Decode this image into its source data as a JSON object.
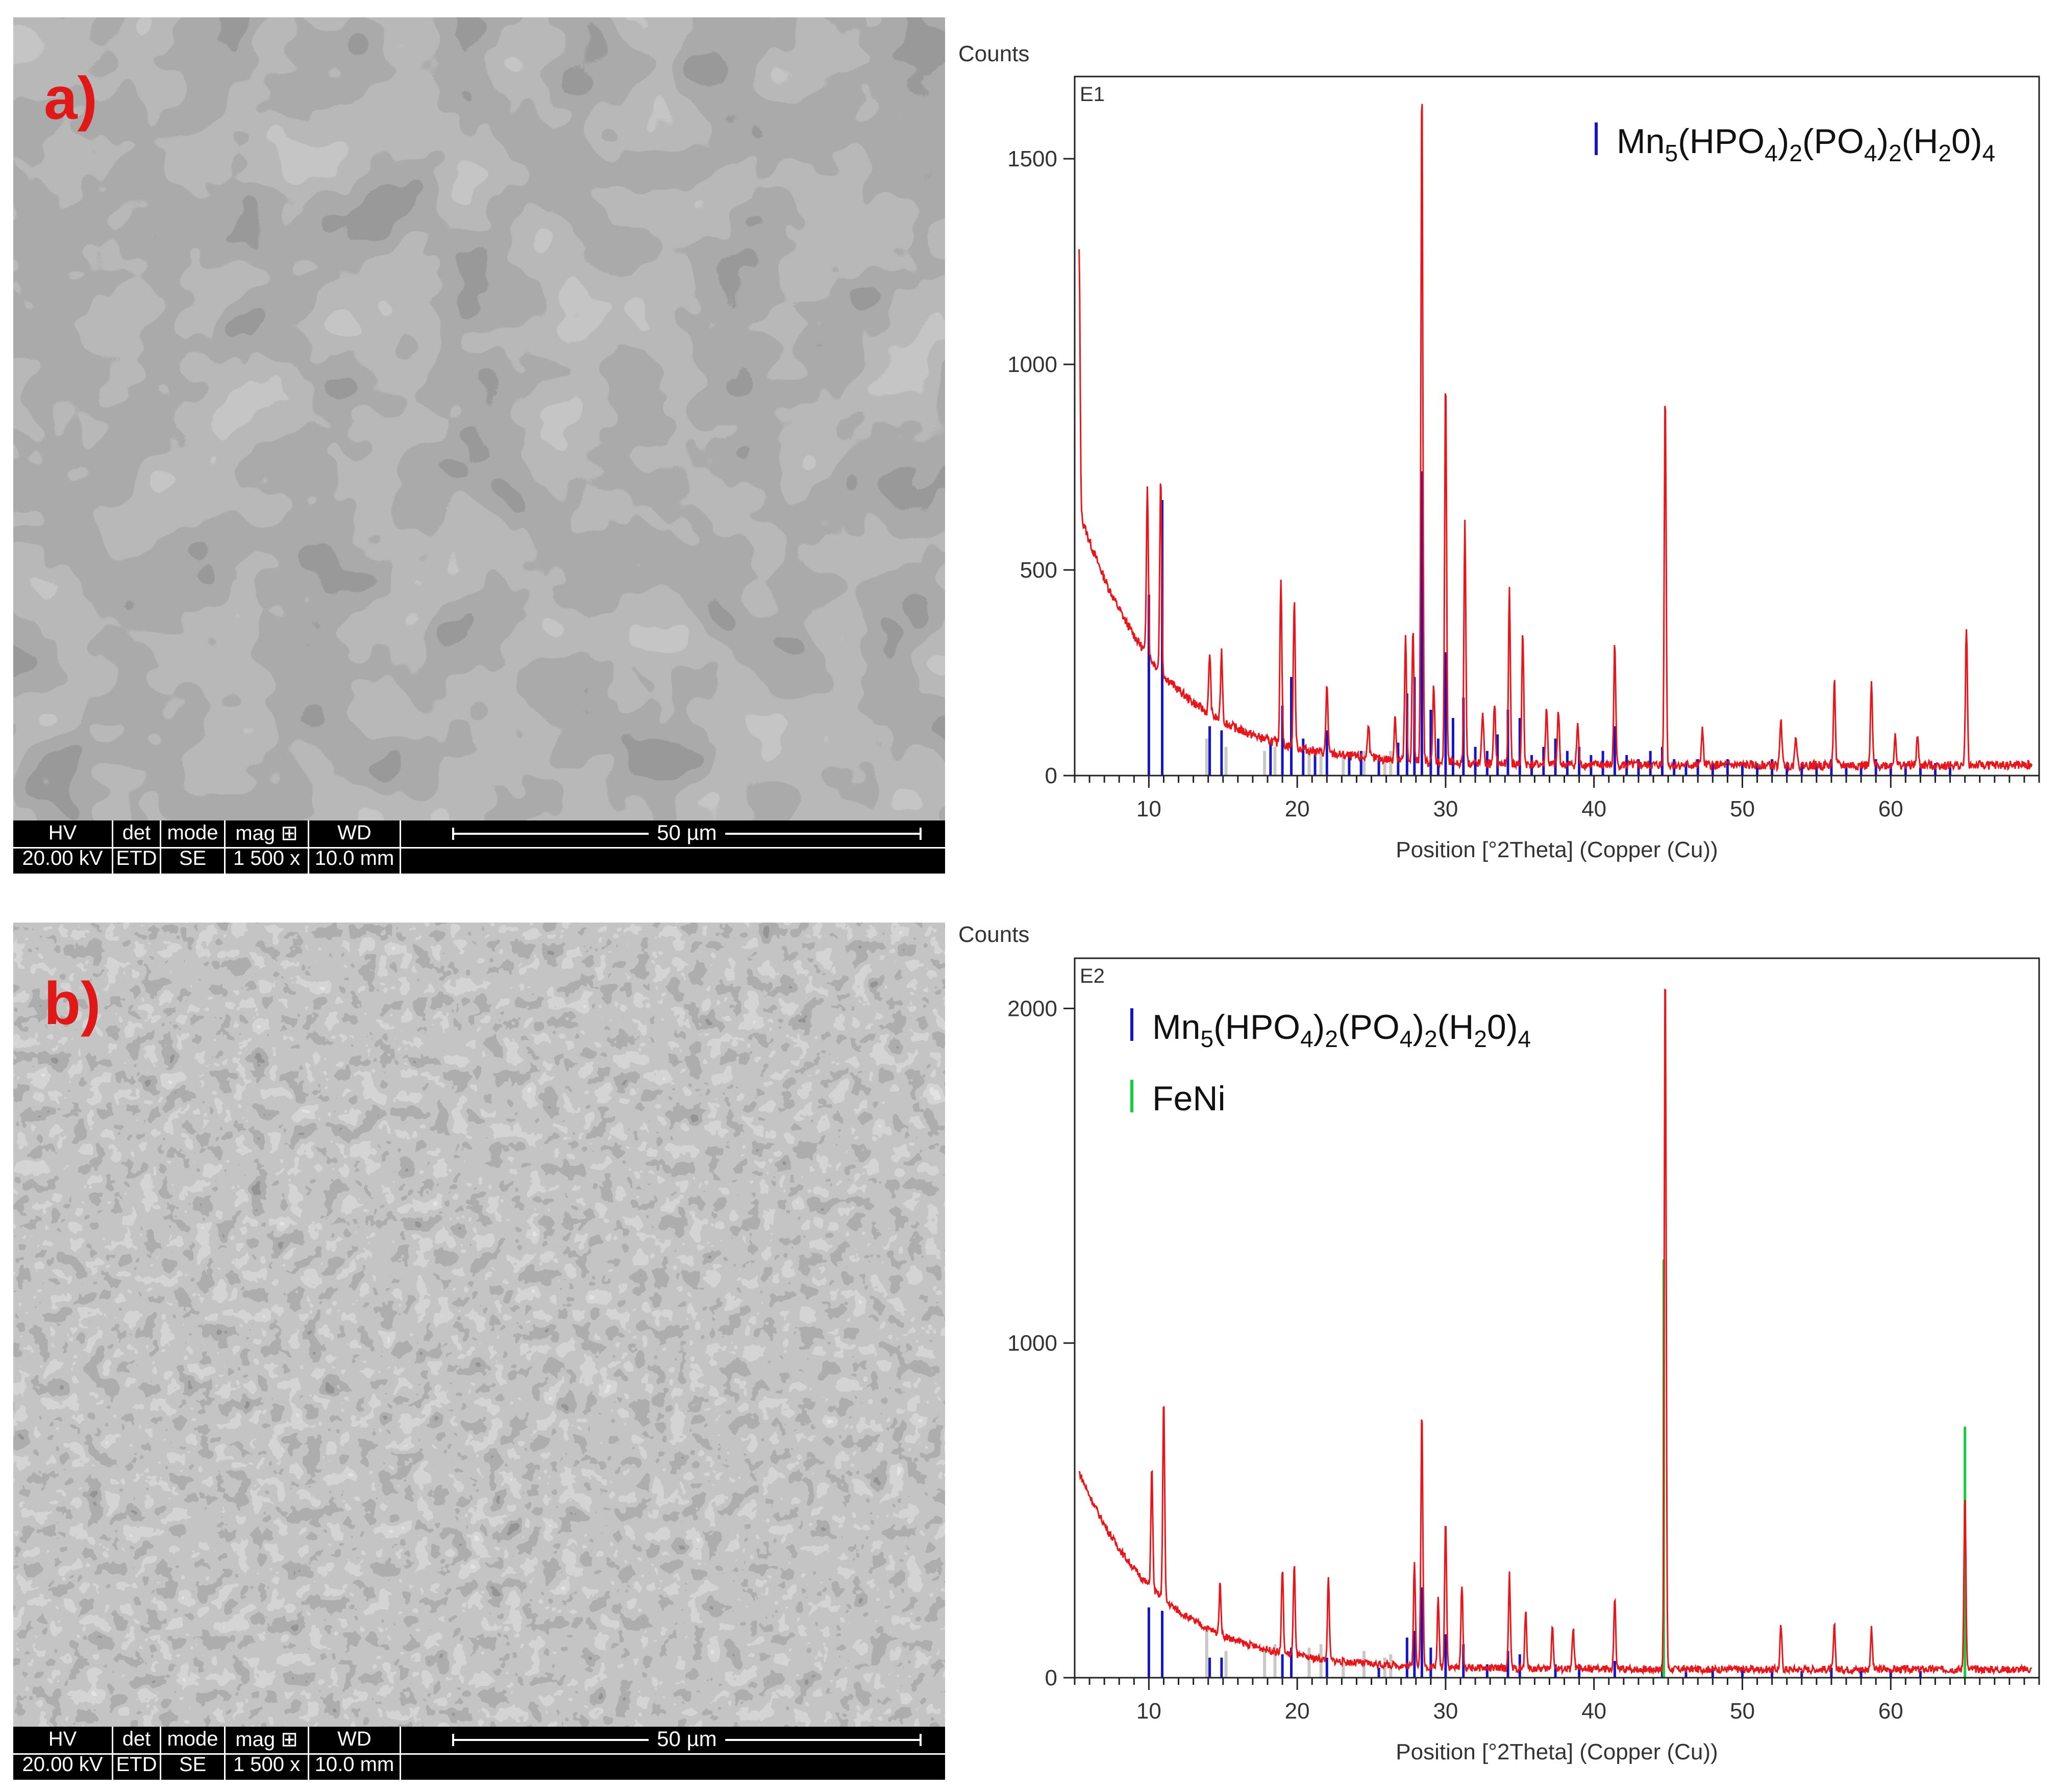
{
  "sem_panels": [
    {
      "label": "a)",
      "databar": {
        "hv_header": "HV",
        "hv_value": "20.00 kV",
        "det_header": "det",
        "det_value": "ETD",
        "mode_header": "mode",
        "mode_value": "SE",
        "mag_header": "mag ⊞",
        "mag_value": "1 500 x",
        "wd_header": "WD",
        "wd_value": "10.0 mm",
        "scale_label": "50 µm"
      }
    },
    {
      "label": "b)",
      "databar": {
        "hv_header": "HV",
        "hv_value": "20.00 kV",
        "det_header": "det",
        "det_value": "ETD",
        "mode_header": "mode",
        "mode_value": "SE",
        "mag_header": "mag ⊞",
        "mag_value": "1 500 x",
        "wd_header": "WD",
        "wd_value": "10.0 mm",
        "scale_label": "50 µm"
      }
    }
  ],
  "colors": {
    "pattern": "#e8151a",
    "phase_mn": "#1515c8",
    "phase_feni": "#10d040",
    "reference": "#c8c8c8"
  },
  "chart_data": [
    {
      "type": "line",
      "panel_id": "E1",
      "ylabel": "Counts",
      "xlabel": "Position [°2Theta] (Copper (Cu))",
      "xlim": [
        5,
        70
      ],
      "ylim": [
        0,
        1700
      ],
      "x_ticks": [
        10,
        20,
        30,
        40,
        50,
        60
      ],
      "y_ticks": [
        0,
        500,
        1000,
        1500
      ],
      "legend": [
        {
          "name": "Mn",
          "suffix": "(HPO",
          "s1": "4",
          "m1": ")",
          "s2": "2",
          "m2": "(PO",
          "s3": "4",
          "m3": ")",
          "s4": "2",
          "m4": "(H",
          "s5": "2",
          "m5": "0)",
          "s6": "4",
          "color": "#1515c8"
        }
      ],
      "series": [
        {
          "name": "measured",
          "background": {
            "start": 620,
            "decay": 5.5,
            "floor": 25
          },
          "peaks": [
            [
              5.3,
              630
            ],
            [
              9.9,
              420
            ],
            [
              10.8,
              480
            ],
            [
              14.1,
              150
            ],
            [
              14.9,
              170
            ],
            [
              18.9,
              410
            ],
            [
              19.8,
              360
            ],
            [
              22.0,
              170
            ],
            [
              24.8,
              90
            ],
            [
              26.6,
              110
            ],
            [
              27.3,
              300
            ],
            [
              27.8,
              320
            ],
            [
              28.4,
              1670
            ],
            [
              29.2,
              190
            ],
            [
              30.0,
              940
            ],
            [
              31.3,
              590
            ],
            [
              32.5,
              130
            ],
            [
              33.3,
              150
            ],
            [
              34.3,
              420
            ],
            [
              35.2,
              320
            ],
            [
              36.8,
              140
            ],
            [
              37.6,
              130
            ],
            [
              38.9,
              100
            ],
            [
              41.4,
              300
            ],
            [
              44.8,
              910
            ],
            [
              47.3,
              90
            ],
            [
              52.6,
              120
            ],
            [
              53.6,
              80
            ],
            [
              56.2,
              210
            ],
            [
              58.7,
              200
            ],
            [
              60.3,
              80
            ],
            [
              61.8,
              70
            ],
            [
              65.1,
              340
            ]
          ]
        }
      ],
      "sticks": [
        {
          "name": "Mn5(HPO4)2(PO4)2(H2O)4",
          "color": "#1515c8",
          "x": [
            10.0,
            10.9,
            14.1,
            14.9,
            18.2,
            19.0,
            19.6,
            20.4,
            21.2,
            22.0,
            23.5,
            24.3,
            25.5,
            26.8,
            27.4,
            27.9,
            28.4,
            29.0,
            29.5,
            30.0,
            30.5,
            31.2,
            32.0,
            32.8,
            33.5,
            34.2,
            35.0,
            35.8,
            36.6,
            37.4,
            38.2,
            39.0,
            39.8,
            40.6,
            41.4,
            42.2,
            43.0,
            43.8,
            44.6,
            45.4,
            46.2,
            47.0,
            48.0,
            49.0,
            50.0,
            51.0,
            52.0,
            53.0,
            54.0,
            55.0,
            56.0,
            57.0,
            58.0,
            59.0,
            60.0,
            61.0,
            62.0,
            63.0,
            64.0
          ],
          "y": [
            440,
            670,
            120,
            110,
            80,
            170,
            240,
            90,
            60,
            110,
            50,
            60,
            40,
            80,
            200,
            240,
            740,
            160,
            90,
            300,
            140,
            190,
            70,
            60,
            100,
            160,
            140,
            50,
            70,
            90,
            60,
            70,
            50,
            60,
            120,
            50,
            40,
            60,
            70,
            40,
            30,
            40,
            30,
            40,
            30,
            30,
            40,
            30,
            30,
            30,
            40,
            30,
            30,
            40,
            30,
            30,
            20,
            30,
            20
          ]
        },
        {
          "name": "reference",
          "color": "#c8c8c8",
          "x": [
            13.9,
            15.2,
            17.8,
            18.5,
            20.8,
            21.6,
            23.1,
            24.5,
            25.9,
            26.3
          ],
          "y": [
            90,
            70,
            60,
            70,
            60,
            70,
            50,
            60,
            50,
            60
          ]
        }
      ]
    },
    {
      "type": "line",
      "panel_id": "E2",
      "ylabel": "Counts",
      "xlabel": "Position [°2Theta] (Copper (Cu))",
      "xlim": [
        5,
        70
      ],
      "ylim": [
        0,
        2150
      ],
      "x_ticks": [
        10,
        20,
        30,
        40,
        50,
        60
      ],
      "y_ticks": [
        0,
        1000,
        2000
      ],
      "legend": [
        {
          "name": "Mn",
          "suffix": "(HPO",
          "s1": "4",
          "m1": ")",
          "s2": "2",
          "m2": "(PO",
          "s3": "4",
          "m3": ")",
          "s4": "2",
          "m4": "(H",
          "s5": "2",
          "m5": "0)",
          "s6": "4",
          "color": "#1515c8"
        },
        {
          "name": "FeNi",
          "color": "#10d040"
        }
      ],
      "series": [
        {
          "name": "measured",
          "background": {
            "start": 590,
            "decay": 5.5,
            "floor": 25
          },
          "peaks": [
            [
              10.2,
              360
            ],
            [
              11.0,
              600
            ],
            [
              14.8,
              150
            ],
            [
              19.0,
              250
            ],
            [
              19.8,
              270
            ],
            [
              22.1,
              240
            ],
            [
              27.9,
              320
            ],
            [
              28.4,
              770
            ],
            [
              29.5,
              200
            ],
            [
              30.0,
              450
            ],
            [
              31.1,
              250
            ],
            [
              34.3,
              280
            ],
            [
              35.4,
              170
            ],
            [
              37.2,
              130
            ],
            [
              38.6,
              120
            ],
            [
              41.4,
              210
            ],
            [
              44.8,
              2130
            ],
            [
              52.6,
              130
            ],
            [
              56.2,
              130
            ],
            [
              58.7,
              120
            ],
            [
              65.0,
              530
            ]
          ]
        }
      ],
      "sticks": [
        {
          "name": "Mn5(HPO4)2(PO4)2(H2O)4",
          "color": "#1515c8",
          "x": [
            10.0,
            10.9,
            14.1,
            14.9,
            19.0,
            19.6,
            22.0,
            25.5,
            27.4,
            27.9,
            28.4,
            29.0,
            30.0,
            31.2,
            32.8,
            34.2,
            35.0,
            37.4,
            39.0,
            41.4,
            44.6,
            46.2,
            48.0,
            50.0,
            52.0,
            54.0,
            56.0,
            58.0,
            60.0,
            62.0
          ],
          "y": [
            210,
            200,
            60,
            60,
            70,
            90,
            60,
            30,
            120,
            140,
            270,
            90,
            130,
            100,
            40,
            80,
            70,
            40,
            40,
            50,
            40,
            30,
            30,
            30,
            30,
            20,
            30,
            30,
            20,
            20
          ]
        },
        {
          "name": "FeNi",
          "color": "#10d040",
          "x": [
            44.7,
            65.0
          ],
          "y": [
            1250,
            750
          ]
        },
        {
          "name": "reference",
          "color": "#c8c8c8",
          "x": [
            13.9,
            15.2,
            17.8,
            18.5,
            20.8,
            21.6,
            23.1,
            24.5,
            25.9,
            26.3
          ],
          "y": [
            150,
            80,
            90,
            100,
            90,
            100,
            60,
            80,
            60,
            70
          ]
        }
      ]
    }
  ]
}
